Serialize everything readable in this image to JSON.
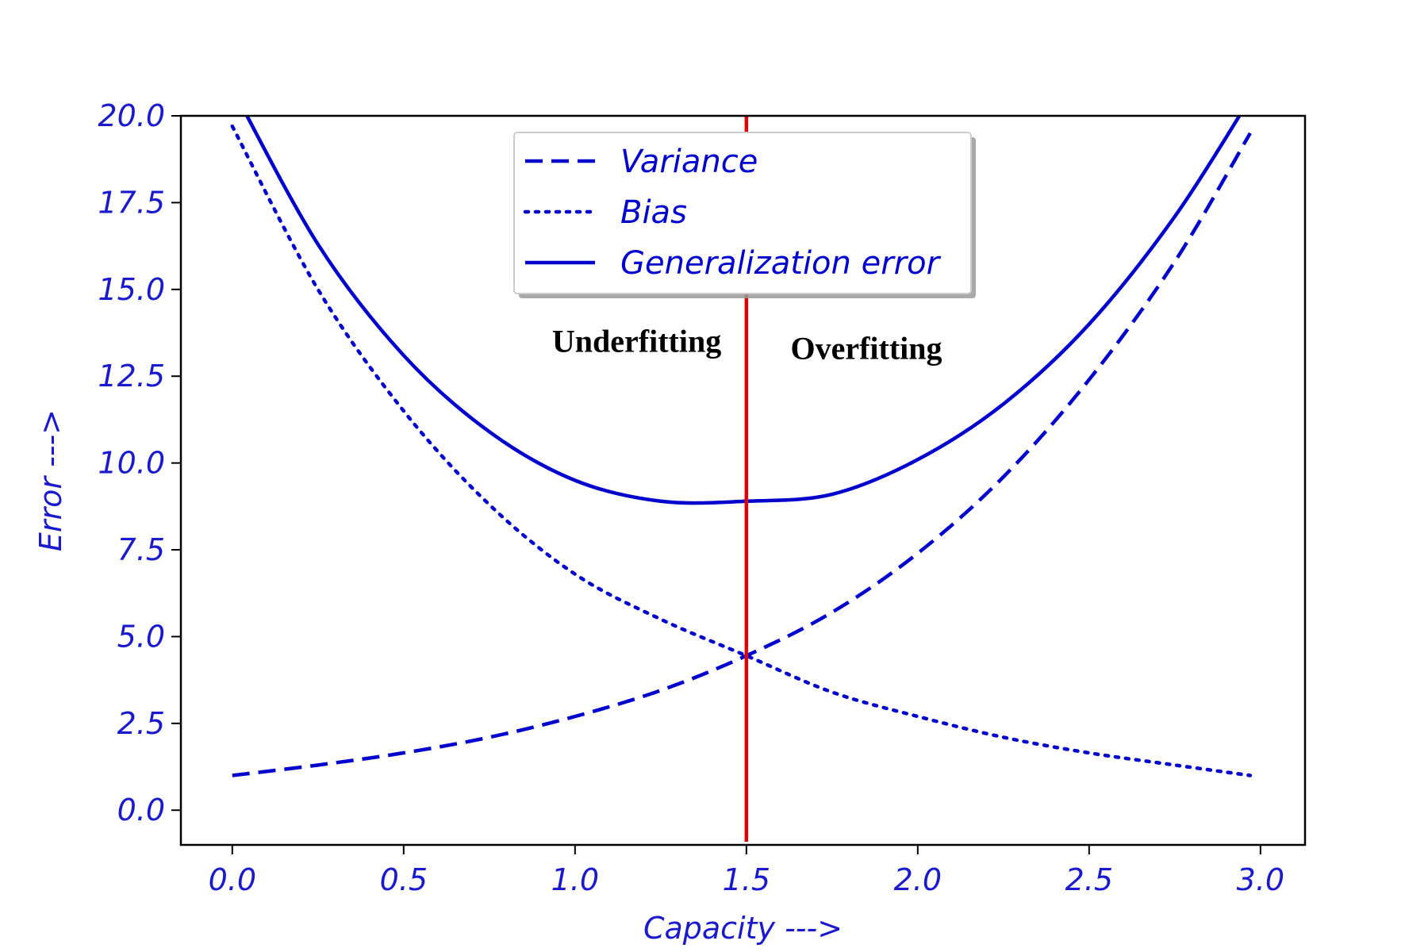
{
  "chart_data": {
    "type": "line",
    "title": "",
    "xlabel": "Capacity --->",
    "ylabel": "Error --->",
    "xlim": [
      -0.15,
      3.13
    ],
    "ylim": [
      -1.0,
      20.0
    ],
    "xticks": [
      "0.0",
      "0.5",
      "1.0",
      "1.5",
      "2.0",
      "2.5",
      "3.0"
    ],
    "yticks": [
      "0.0",
      "2.5",
      "5.0",
      "7.5",
      "10.0",
      "12.5",
      "15.0",
      "17.5",
      "20.0"
    ],
    "grid": false,
    "legend_position": "top-center",
    "x": [
      0.0,
      0.25,
      0.5,
      0.75,
      1.0,
      1.25,
      1.5,
      1.75,
      2.0,
      2.25,
      2.5,
      2.75,
      2.97
    ],
    "series": [
      {
        "name": "Variance",
        "style": "dashed",
        "color": "#0000cc",
        "values": [
          1.0,
          1.3,
          1.65,
          2.1,
          2.7,
          3.45,
          4.45,
          5.7,
          7.4,
          9.6,
          12.4,
          15.8,
          19.5
        ]
      },
      {
        "name": "Bias",
        "style": "dotted",
        "color": "#0000cc",
        "values": [
          19.7,
          15.0,
          11.5,
          8.8,
          6.8,
          5.5,
          4.45,
          3.4,
          2.7,
          2.1,
          1.65,
          1.3,
          1.0
        ]
      },
      {
        "name": "Generalization error",
        "style": "solid",
        "color": "#0000cc",
        "values": [
          20.8,
          16.3,
          13.1,
          10.9,
          9.5,
          8.9,
          8.9,
          9.1,
          10.1,
          11.7,
          14.0,
          17.1,
          20.5
        ]
      }
    ],
    "vertical_line": {
      "x": 1.5,
      "color": "#e00000"
    },
    "annotations": [
      {
        "text": "Underfitting",
        "x": 1.18,
        "y": 13.2
      },
      {
        "text": "Overfitting",
        "x": 1.85,
        "y": 13.0
      }
    ],
    "colors": {
      "series": "#0000cc",
      "tick_text": "#1a1acc",
      "vline": "#e00000",
      "frame": "#000000"
    }
  }
}
